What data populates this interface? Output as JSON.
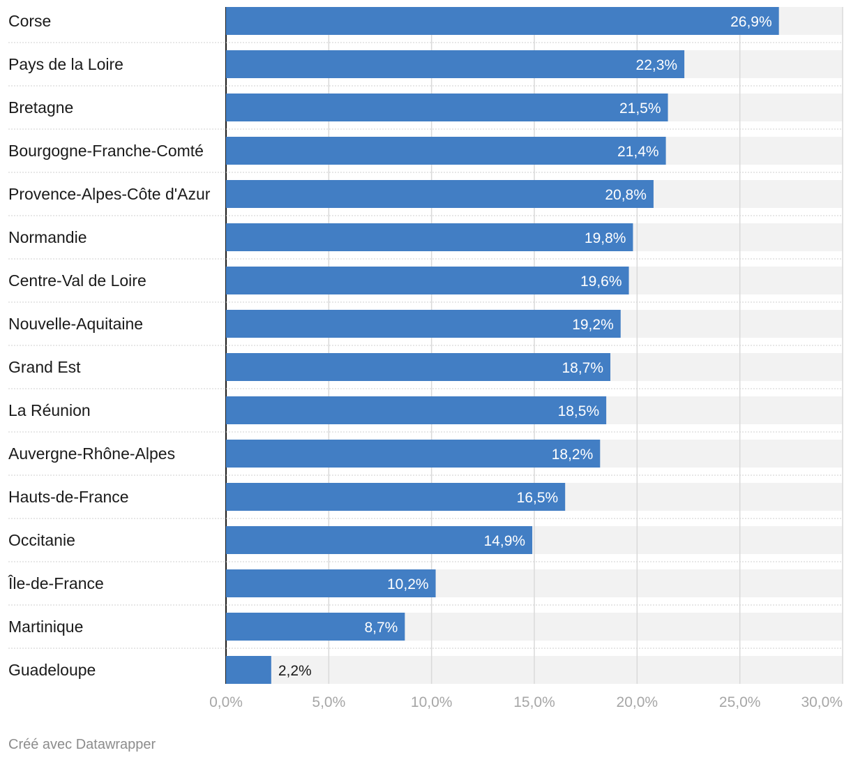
{
  "chart_data": {
    "type": "bar",
    "orientation": "horizontal",
    "categories": [
      "Corse",
      "Pays de la Loire",
      "Bretagne",
      "Bourgogne-Franche-Comté",
      "Provence-Alpes-Côte d'Azur",
      "Normandie",
      "Centre-Val de Loire",
      "Nouvelle-Aquitaine",
      "Grand Est",
      "La Réunion",
      "Auvergne-Rhône-Alpes",
      "Hauts-de-France",
      "Occitanie",
      "Île-de-France",
      "Martinique",
      "Guadeloupe"
    ],
    "values": [
      26.9,
      22.3,
      21.5,
      21.4,
      20.8,
      19.8,
      19.6,
      19.2,
      18.7,
      18.5,
      18.2,
      16.5,
      14.9,
      10.2,
      8.7,
      2.2
    ],
    "value_labels": [
      "26,9%",
      "22,3%",
      "21,5%",
      "21,4%",
      "20,8%",
      "19,8%",
      "19,6%",
      "19,2%",
      "18,7%",
      "18,5%",
      "18,2%",
      "16,5%",
      "14,9%",
      "10,2%",
      "8,7%",
      "2,2%"
    ],
    "xlim": [
      0,
      30
    ],
    "xticks": [
      0,
      5,
      10,
      15,
      20,
      25,
      30
    ],
    "xtick_labels": [
      "0,0%",
      "5,0%",
      "10,0%",
      "15,0%",
      "20,0%",
      "25,0%",
      "30,0%"
    ],
    "grid": true,
    "colors": {
      "bar": "#427ec4",
      "track": "#f2f2f2",
      "grid": "#d9d9d9",
      "tick_text": "#a6a6a6",
      "label_text": "#1a1a1a"
    }
  },
  "footer": {
    "credit": "Créé avec Datawrapper"
  }
}
